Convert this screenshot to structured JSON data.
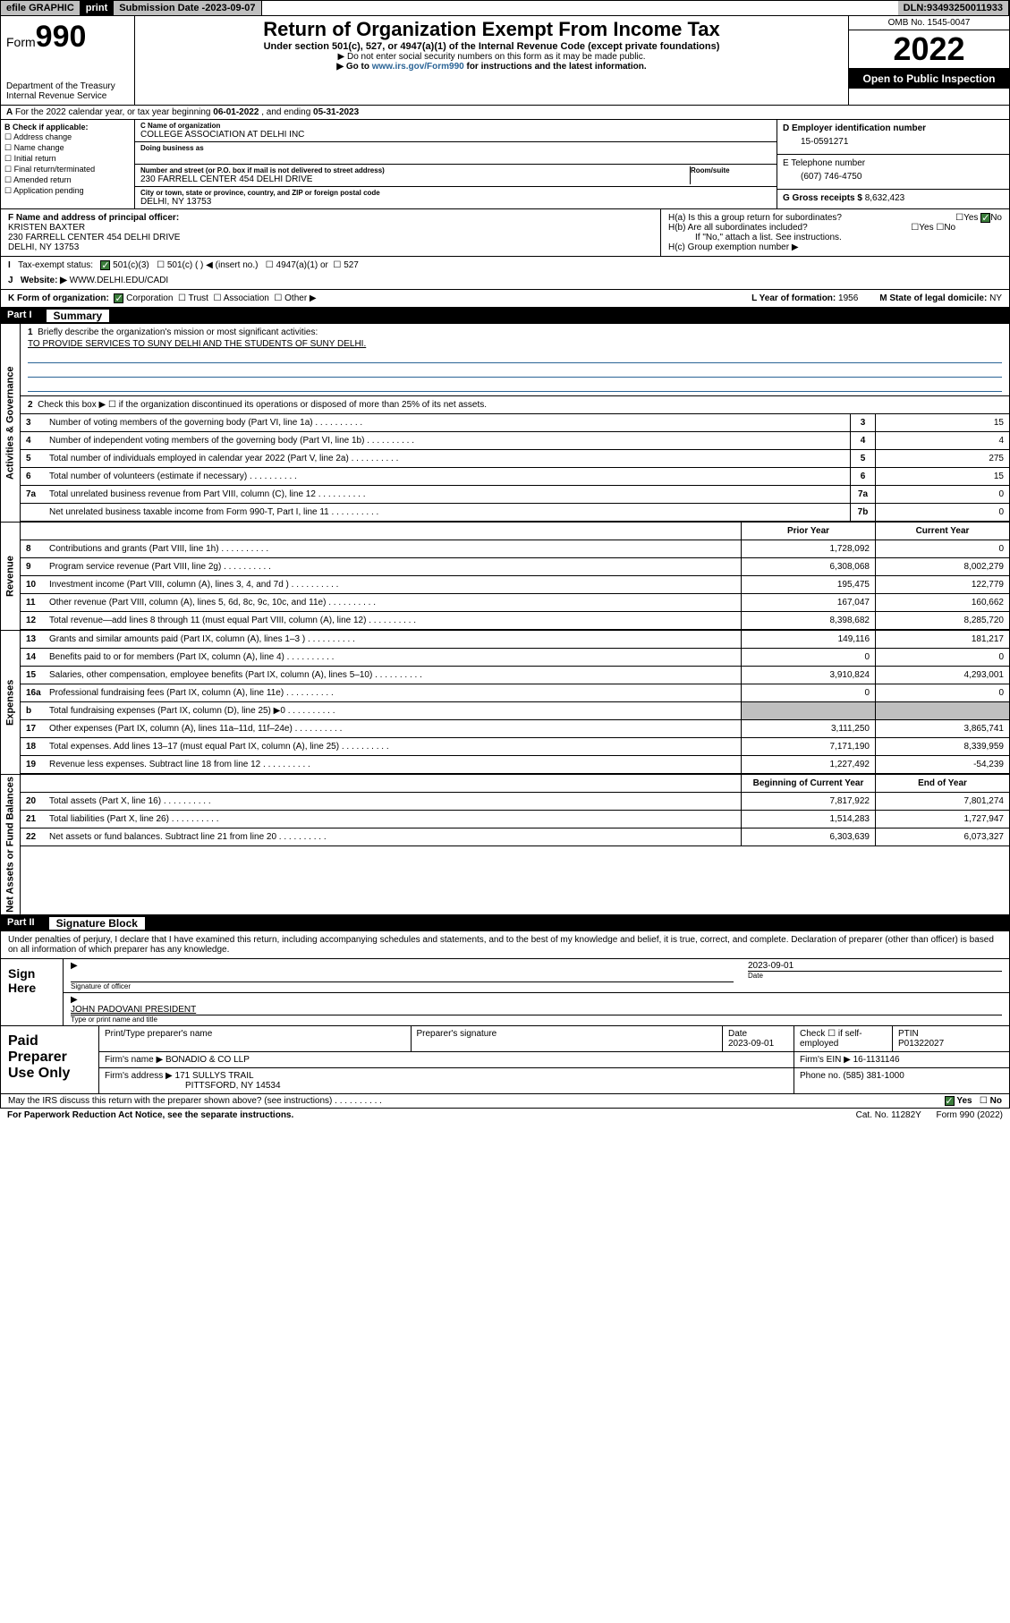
{
  "topbar": {
    "efile": "efile GRAPHIC",
    "print": "print",
    "subdate_label": "Submission Date - ",
    "subdate": "2023-09-07",
    "dln_label": "DLN: ",
    "dln": "93493250011933"
  },
  "header": {
    "form_label": "Form",
    "form_num": "990",
    "dept": "Department of the Treasury",
    "irs": "Internal Revenue Service",
    "title": "Return of Organization Exempt From Income Tax",
    "subtitle": "Under section 501(c), 527, or 4947(a)(1) of the Internal Revenue Code (except private foundations)",
    "instr1": "▶ Do not enter social security numbers on this form as it may be made public.",
    "instr2_pre": "▶ Go to ",
    "instr2_link": "www.irs.gov/Form990",
    "instr2_post": " for instructions and the latest information.",
    "omb": "OMB No. 1545-0047",
    "year": "2022",
    "open": "Open to Public Inspection"
  },
  "A": {
    "text": "For the 2022 calendar year, or tax year beginning ",
    "begin": "06-01-2022",
    "mid": " , and ending ",
    "end": "05-31-2023"
  },
  "B": {
    "label": "B Check if applicable:",
    "items": [
      "Address change",
      "Name change",
      "Initial return",
      "Final return/terminated",
      "Amended return",
      "Application pending"
    ]
  },
  "C": {
    "name_lbl": "C Name of organization",
    "name": "COLLEGE ASSOCIATION AT DELHI INC",
    "dba_lbl": "Doing business as",
    "addr_lbl": "Number and street (or P.O. box if mail is not delivered to street address)",
    "room_lbl": "Room/suite",
    "addr": "230 FARRELL CENTER 454 DELHI DRIVE",
    "city_lbl": "City or town, state or province, country, and ZIP or foreign postal code",
    "city": "DELHI, NY  13753"
  },
  "D": {
    "lbl": "D Employer identification number",
    "val": "15-0591271"
  },
  "E": {
    "lbl": "E Telephone number",
    "val": "(607) 746-4750"
  },
  "G": {
    "lbl": "G Gross receipts $ ",
    "val": "8,632,423"
  },
  "F": {
    "lbl": "F Name and address of principal officer:",
    "name": "KRISTEN BAXTER",
    "addr": "230 FARRELL CENTER 454 DELHI DRIVE",
    "city": "DELHI, NY  13753"
  },
  "H": {
    "a": "H(a)  Is this a group return for subordinates?",
    "b": "H(b)  Are all subordinates included?",
    "b2": "If \"No,\" attach a list. See instructions.",
    "c": "H(c)  Group exemption number ▶",
    "yes": "Yes",
    "no": "No"
  },
  "I": {
    "lbl": "Tax-exempt status:",
    "o1": "501(c)(3)",
    "o2": "501(c) (  ) ◀ (insert no.)",
    "o3": "4947(a)(1) or",
    "o4": "527"
  },
  "J": {
    "lbl": "Website: ▶",
    "val": "WWW.DELHI.EDU/CADI"
  },
  "K": {
    "lbl": "K Form of organization:",
    "o1": "Corporation",
    "o2": "Trust",
    "o3": "Association",
    "o4": "Other ▶"
  },
  "L": {
    "lbl": "L Year of formation: ",
    "val": "1956"
  },
  "M": {
    "lbl": "M State of legal domicile: ",
    "val": "NY"
  },
  "part1": {
    "bar": "Part I",
    "title": "Summary"
  },
  "summary": {
    "q1": "Briefly describe the organization's mission or most significant activities:",
    "mission": "TO PROVIDE SERVICES TO SUNY DELHI AND THE STUDENTS OF SUNY DELHI.",
    "q2": "Check this box ▶ ☐  if the organization discontinued its operations or disposed of more than 25% of its net assets.",
    "rows_ag": [
      {
        "n": "3",
        "t": "Number of voting members of the governing body (Part VI, line 1a)",
        "box": "3",
        "v": "15"
      },
      {
        "n": "4",
        "t": "Number of independent voting members of the governing body (Part VI, line 1b)",
        "box": "4",
        "v": "4"
      },
      {
        "n": "5",
        "t": "Total number of individuals employed in calendar year 2022 (Part V, line 2a)",
        "box": "5",
        "v": "275"
      },
      {
        "n": "6",
        "t": "Total number of volunteers (estimate if necessary)",
        "box": "6",
        "v": "15"
      },
      {
        "n": "7a",
        "t": "Total unrelated business revenue from Part VIII, column (C), line 12",
        "box": "7a",
        "v": "0"
      },
      {
        "n": "",
        "t": "Net unrelated business taxable income from Form 990-T, Part I, line 11",
        "box": "7b",
        "v": "0"
      }
    ],
    "head_prior": "Prior Year",
    "head_curr": "Current Year",
    "rows_rev": [
      {
        "n": "8",
        "t": "Contributions and grants (Part VIII, line 1h)",
        "p": "1,728,092",
        "c": "0"
      },
      {
        "n": "9",
        "t": "Program service revenue (Part VIII, line 2g)",
        "p": "6,308,068",
        "c": "8,002,279"
      },
      {
        "n": "10",
        "t": "Investment income (Part VIII, column (A), lines 3, 4, and 7d )",
        "p": "195,475",
        "c": "122,779"
      },
      {
        "n": "11",
        "t": "Other revenue (Part VIII, column (A), lines 5, 6d, 8c, 9c, 10c, and 11e)",
        "p": "167,047",
        "c": "160,662"
      },
      {
        "n": "12",
        "t": "Total revenue—add lines 8 through 11 (must equal Part VIII, column (A), line 12)",
        "p": "8,398,682",
        "c": "8,285,720"
      }
    ],
    "rows_exp": [
      {
        "n": "13",
        "t": "Grants and similar amounts paid (Part IX, column (A), lines 1–3 )",
        "p": "149,116",
        "c": "181,217"
      },
      {
        "n": "14",
        "t": "Benefits paid to or for members (Part IX, column (A), line 4)",
        "p": "0",
        "c": "0"
      },
      {
        "n": "15",
        "t": "Salaries, other compensation, employee benefits (Part IX, column (A), lines 5–10)",
        "p": "3,910,824",
        "c": "4,293,001"
      },
      {
        "n": "16a",
        "t": "Professional fundraising fees (Part IX, column (A), line 11e)",
        "p": "0",
        "c": "0"
      },
      {
        "n": "b",
        "t": "Total fundraising expenses (Part IX, column (D), line 25) ▶0",
        "p": "",
        "c": "",
        "grey": true
      },
      {
        "n": "17",
        "t": "Other expenses (Part IX, column (A), lines 11a–11d, 11f–24e)",
        "p": "3,111,250",
        "c": "3,865,741"
      },
      {
        "n": "18",
        "t": "Total expenses. Add lines 13–17 (must equal Part IX, column (A), line 25)",
        "p": "7,171,190",
        "c": "8,339,959"
      },
      {
        "n": "19",
        "t": "Revenue less expenses. Subtract line 18 from line 12",
        "p": "1,227,492",
        "c": "-54,239"
      }
    ],
    "head_beg": "Beginning of Current Year",
    "head_end": "End of Year",
    "rows_na": [
      {
        "n": "20",
        "t": "Total assets (Part X, line 16)",
        "p": "7,817,922",
        "c": "7,801,274"
      },
      {
        "n": "21",
        "t": "Total liabilities (Part X, line 26)",
        "p": "1,514,283",
        "c": "1,727,947"
      },
      {
        "n": "22",
        "t": "Net assets or fund balances. Subtract line 21 from line 20",
        "p": "6,303,639",
        "c": "6,073,327"
      }
    ],
    "vlabels": {
      "ag": "Activities & Governance",
      "rev": "Revenue",
      "exp": "Expenses",
      "na": "Net Assets or Fund Balances"
    }
  },
  "part2": {
    "bar": "Part II",
    "title": "Signature Block"
  },
  "sig": {
    "decl": "Under penalties of perjury, I declare that I have examined this return, including accompanying schedules and statements, and to the best of my knowledge and belief, it is true, correct, and complete. Declaration of preparer (other than officer) is based on all information of which preparer has any knowledge.",
    "sign_here": "Sign Here",
    "sig_officer": "Signature of officer",
    "date": "Date",
    "sig_date": "2023-09-01",
    "name": "JOHN PADOVANI PRESIDENT",
    "name_lbl": "Type or print name and title"
  },
  "prep": {
    "lbl": "Paid Preparer Use Only",
    "h1": "Print/Type preparer's name",
    "h2": "Preparer's signature",
    "h3": "Date",
    "h3v": "2023-09-01",
    "h4": "Check ☐ if self-employed",
    "h5": "PTIN",
    "h5v": "P01322027",
    "firm_lbl": "Firm's name     ▶",
    "firm": "BONADIO & CO LLP",
    "ein_lbl": "Firm's EIN ▶",
    "ein": "16-1131146",
    "addr_lbl": "Firm's address ▶",
    "addr1": "171 SULLYS TRAIL",
    "addr2": "PITTSFORD, NY  14534",
    "phone_lbl": "Phone no. ",
    "phone": "(585) 381-1000"
  },
  "foot": {
    "q": "May the IRS discuss this return with the preparer shown above? (see instructions)",
    "yes": "Yes",
    "no": "No",
    "pwk": "For Paperwork Reduction Act Notice, see the separate instructions.",
    "cat": "Cat. No. 11282Y",
    "form": "Form 990 (2022)"
  }
}
